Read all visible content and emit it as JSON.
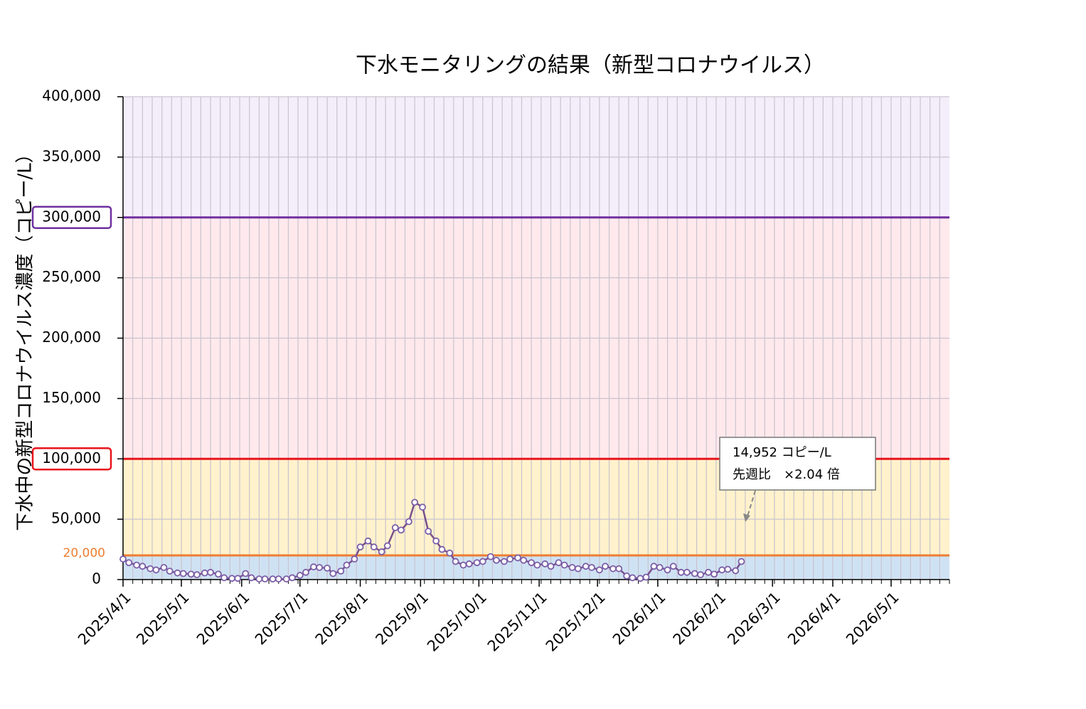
{
  "chart_data": {
    "type": "line",
    "title": "下水モニタリングの結果（新型コロナウイルス）",
    "y_label": "下水中の新型コロナウイルス濃度（コピー/L）",
    "ylim": [
      0,
      400000
    ],
    "yticks": [
      {
        "value": 0,
        "label": "0"
      },
      {
        "value": 50000,
        "label": "50,000"
      },
      {
        "value": 100000,
        "label": "100,000"
      },
      {
        "value": 150000,
        "label": "150,000"
      },
      {
        "value": 200000,
        "label": "200,000"
      },
      {
        "value": 250000,
        "label": "250,000"
      },
      {
        "value": 300000,
        "label": "300,000"
      },
      {
        "value": 350000,
        "label": "350,000"
      },
      {
        "value": 400000,
        "label": "400,000"
      }
    ],
    "xlim": [
      "2025/4/1",
      "2026/5/31"
    ],
    "xticks": [
      "2025/4/1",
      "2025/5/1",
      "2025/6/1",
      "2025/7/1",
      "2025/8/1",
      "2025/9/1",
      "2025/10/1",
      "2025/11/1",
      "2025/12/1",
      "2026/1/1",
      "2026/2/1",
      "2026/3/1",
      "2026/4/1",
      "2026/5/1"
    ],
    "x_minor_grid_days": 5,
    "grid": true,
    "bands": [
      {
        "from": 0,
        "to": 20000,
        "color": "#cfe2f3"
      },
      {
        "from": 20000,
        "to": 100000,
        "color": "#fff2cc"
      },
      {
        "from": 100000,
        "to": 300000,
        "color": "#ffe9ec"
      },
      {
        "from": 300000,
        "to": 400000,
        "color": "#f4eefb"
      }
    ],
    "thresholds": [
      {
        "value": 20000,
        "label": "20,000",
        "color": "#ed7d31"
      },
      {
        "value": 100000,
        "color": "#e8141b"
      },
      {
        "value": 300000,
        "color": "#7030a0"
      }
    ],
    "x": [
      "2025/4/1",
      "2025/4/4",
      "2025/4/8",
      "2025/4/11",
      "2025/4/15",
      "2025/4/18",
      "2025/4/22",
      "2025/4/25",
      "2025/4/29",
      "2025/5/2",
      "2025/5/6",
      "2025/5/9",
      "2025/5/13",
      "2025/5/16",
      "2025/5/20",
      "2025/5/23",
      "2025/5/27",
      "2025/5/30",
      "2025/6/3",
      "2025/6/6",
      "2025/6/10",
      "2025/6/13",
      "2025/6/17",
      "2025/6/20",
      "2025/6/24",
      "2025/6/27",
      "2025/7/1",
      "2025/7/4",
      "2025/7/8",
      "2025/7/11",
      "2025/7/15",
      "2025/7/18",
      "2025/7/22",
      "2025/7/25",
      "2025/7/29",
      "2025/8/1",
      "2025/8/5",
      "2025/8/8",
      "2025/8/12",
      "2025/8/15",
      "2025/8/19",
      "2025/8/22",
      "2025/8/26",
      "2025/8/29",
      "2025/9/2",
      "2025/9/5",
      "2025/9/9",
      "2025/9/12",
      "2025/9/16",
      "2025/9/19",
      "2025/9/23",
      "2025/9/26",
      "2025/9/30",
      "2025/10/3",
      "2025/10/7",
      "2025/10/10",
      "2025/10/14",
      "2025/10/17",
      "2025/10/21",
      "2025/10/24",
      "2025/10/28",
      "2025/10/31",
      "2025/11/4",
      "2025/11/7",
      "2025/11/11",
      "2025/11/14",
      "2025/11/18",
      "2025/11/21",
      "2025/11/25",
      "2025/11/28",
      "2025/12/2",
      "2025/12/5",
      "2025/12/9",
      "2025/12/12",
      "2025/12/16",
      "2025/12/19",
      "2025/12/23",
      "2025/12/26",
      "2025/12/30",
      "2026/1/2",
      "2026/1/6",
      "2026/1/9",
      "2026/1/13",
      "2026/1/16",
      "2026/1/20",
      "2026/1/23",
      "2026/1/27",
      "2026/1/30",
      "2026/2/3",
      "2026/2/6",
      "2026/2/10",
      "2026/2/13"
    ],
    "series": [
      {
        "color": "#7a4f8c",
        "marker_color": "#7b5ea7",
        "values": [
          17000,
          14000,
          12000,
          11000,
          9000,
          8000,
          10000,
          7000,
          5500,
          5000,
          4500,
          4000,
          5500,
          6000,
          4500,
          1500,
          1000,
          1000,
          5000,
          1500,
          500,
          500,
          500,
          500,
          500,
          1500,
          3500,
          6000,
          10500,
          10000,
          9500,
          5000,
          7000,
          12000,
          17000,
          27000,
          32000,
          27000,
          23000,
          28000,
          43000,
          41000,
          48000,
          64000,
          60000,
          40000,
          32000,
          25000,
          22000,
          15000,
          12000,
          13000,
          14000,
          15000,
          19000,
          16000,
          15000,
          17000,
          18000,
          16000,
          14000,
          12000,
          13000,
          11000,
          14000,
          12000,
          10000,
          9000,
          11000,
          10000,
          8000,
          11000,
          9000,
          9000,
          3000,
          1500,
          1000,
          2000,
          11000,
          10000,
          8000,
          11000,
          6000,
          6000,
          5000,
          4000,
          6000,
          4500,
          8000,
          8500,
          7329,
          14952
        ]
      }
    ],
    "annotation": {
      "lines": [
        "14,952 コピー/L",
        "先週比　×2.04 倍"
      ],
      "x": "2026/2/13",
      "y": 14952
    }
  }
}
